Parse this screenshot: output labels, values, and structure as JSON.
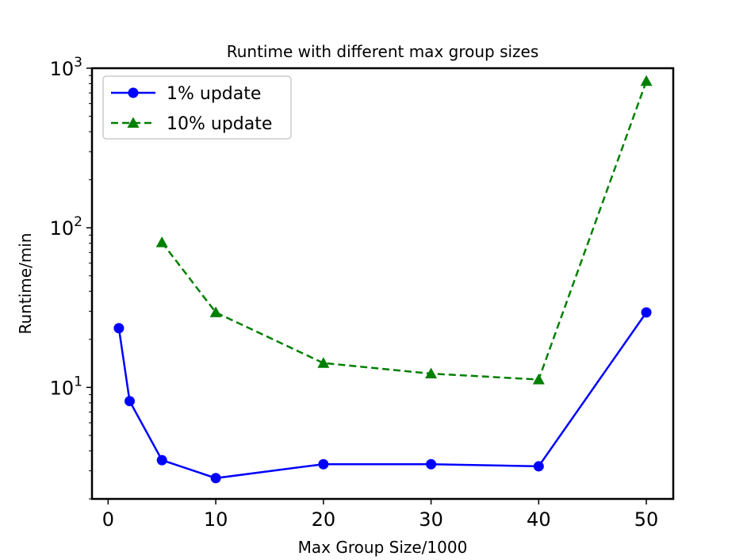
{
  "chart_data": {
    "type": "line",
    "title": "Runtime with different max group sizes",
    "xlabel": "Max Group Size/1000",
    "ylabel": "Runtime/min",
    "yscale": "log",
    "xlim": [
      -1.5,
      52.5
    ],
    "ylim": [
      2.0,
      1000
    ],
    "xticks": [
      0,
      10,
      20,
      30,
      40,
      50
    ],
    "yticks": [
      {
        "value": 10,
        "base": "10",
        "exp": "1"
      },
      {
        "value": 100,
        "base": "10",
        "exp": "2"
      },
      {
        "value": 1000,
        "base": "10",
        "exp": "3"
      }
    ],
    "grid": false,
    "legend_position": "top-left",
    "series": [
      {
        "name": "1% update",
        "color": "#0000ff",
        "linestyle": "solid",
        "marker": "circle",
        "x": [
          1,
          2,
          5,
          10,
          20,
          30,
          40,
          50
        ],
        "y": [
          23.5,
          8.2,
          3.5,
          2.7,
          3.3,
          3.3,
          3.2,
          29.5
        ]
      },
      {
        "name": "10% update",
        "color": "#008000",
        "linestyle": "dashed",
        "marker": "triangle",
        "x": [
          5,
          10,
          20,
          30,
          40,
          50
        ],
        "y": [
          81,
          29.5,
          14.2,
          12.2,
          11.2,
          830
        ]
      }
    ]
  }
}
